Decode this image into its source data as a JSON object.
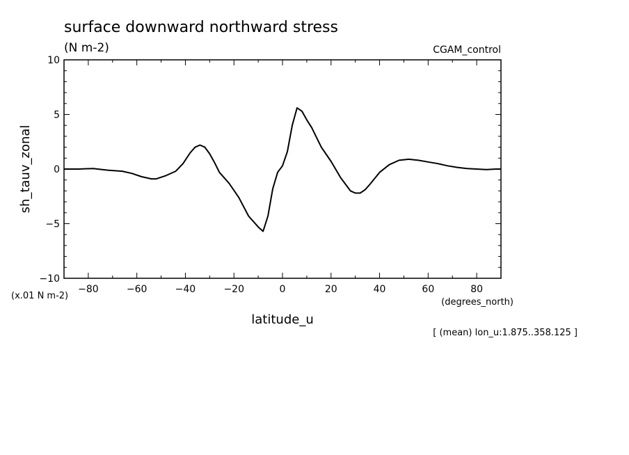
{
  "chart_data": {
    "type": "line",
    "title": "surface downward northward stress",
    "title_units": "(N m-2)",
    "dataset_label": "CGAM_control",
    "xlabel": "latitude_u",
    "x_units": "(degrees_north)",
    "ylabel": "sh_tauv_zonal",
    "y_scale_note": "(x.01 N m-2)",
    "footnote": "[ (mean) lon_u:1.875..358.125 ]",
    "xlim": [
      -90,
      90
    ],
    "ylim": [
      -10,
      10
    ],
    "x_ticks": [
      -80,
      -60,
      -40,
      -20,
      0,
      20,
      40,
      60,
      80
    ],
    "y_ticks": [
      -10,
      -5,
      0,
      5,
      10
    ],
    "grid": false,
    "series": [
      {
        "x": [
          -90,
          -84,
          -78,
          -72,
          -66,
          -62,
          -58,
          -54,
          -52,
          -48,
          -44,
          -41,
          -38,
          -36,
          -34,
          -32,
          -30,
          -28,
          -26,
          -22,
          -18,
          -14,
          -10,
          -8,
          -6,
          -4,
          -2,
          0,
          2,
          4,
          6,
          8,
          10,
          12,
          16,
          20,
          24,
          28,
          30,
          32,
          34,
          36,
          40,
          44,
          48,
          52,
          56,
          60,
          64,
          68,
          72,
          76,
          80,
          84,
          88,
          90
        ],
        "y": [
          0.0,
          0.0,
          0.05,
          -0.1,
          -0.2,
          -0.4,
          -0.7,
          -0.9,
          -0.9,
          -0.6,
          -0.2,
          0.5,
          1.5,
          2.0,
          2.2,
          2.0,
          1.4,
          0.6,
          -0.3,
          -1.3,
          -2.6,
          -4.3,
          -5.3,
          -5.7,
          -4.3,
          -1.8,
          -0.3,
          0.3,
          1.6,
          4.0,
          5.6,
          5.3,
          4.5,
          3.8,
          2.0,
          0.7,
          -0.8,
          -2.0,
          -2.2,
          -2.2,
          -1.9,
          -1.4,
          -0.3,
          0.4,
          0.8,
          0.9,
          0.8,
          0.65,
          0.5,
          0.3,
          0.15,
          0.05,
          0.0,
          -0.05,
          0.0,
          0.0
        ]
      }
    ]
  }
}
